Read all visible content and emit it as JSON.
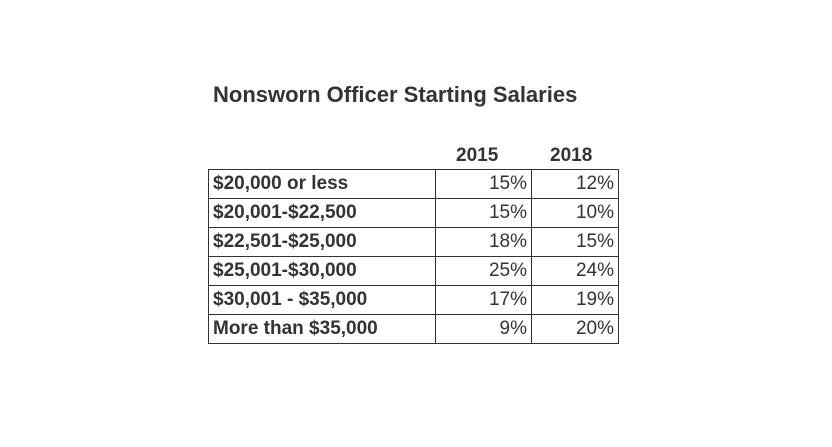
{
  "chart_data": {
    "type": "table",
    "title": "Nonsworn Officer Starting Salaries",
    "columns": [
      "2015",
      "2018"
    ],
    "rows": [
      {
        "label": "$20,000 or less",
        "values": [
          "15%",
          "12%"
        ]
      },
      {
        "label": "$20,001-$22,500",
        "values": [
          "15%",
          "10%"
        ]
      },
      {
        "label": "$22,501-$25,000",
        "values": [
          "18%",
          "15%"
        ]
      },
      {
        "label": "$25,001-$30,000",
        "values": [
          "25%",
          "24%"
        ]
      },
      {
        "label": "$30,001 - $35,000",
        "values": [
          "17%",
          "19%"
        ]
      },
      {
        "label": "More than $35,000",
        "values": [
          "9%",
          "20%"
        ]
      }
    ],
    "series": [
      {
        "name": "2015",
        "values": [
          15,
          15,
          18,
          25,
          17,
          9
        ]
      },
      {
        "name": "2018",
        "values": [
          12,
          10,
          15,
          24,
          19,
          20
        ]
      }
    ],
    "categories": [
      "$20,000 or less",
      "$20,001-$22,500",
      "$22,501-$25,000",
      "$25,001-$30,000",
      "$30,001 - $35,000",
      "More than $35,000"
    ]
  }
}
